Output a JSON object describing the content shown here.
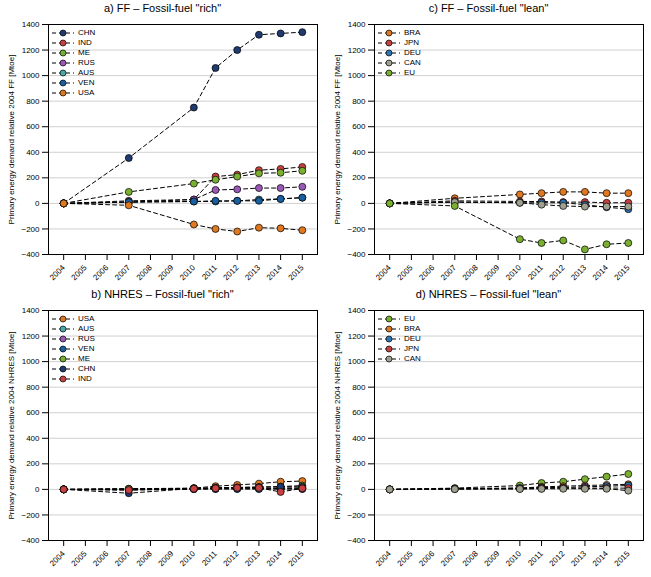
{
  "chart_data": [
    {
      "type": "line",
      "title": "a) FF – Fossil-fuel \"rich\"",
      "ylabel": "Primary energy demand relative 2004 FF [Mtoe]",
      "x": [
        2004,
        2007,
        2010,
        2011,
        2012,
        2013,
        2014,
        2015
      ],
      "xlim": [
        2003.3,
        2015.7
      ],
      "xticks": [
        2004,
        2005,
        2006,
        2007,
        2008,
        2009,
        2010,
        2011,
        2012,
        2013,
        2014,
        2015
      ],
      "ylim": [
        -400,
        1400
      ],
      "yticks": [
        -400,
        -200,
        0,
        200,
        400,
        600,
        800,
        1000,
        1200,
        1400
      ],
      "grid": "y",
      "legend": "upper left",
      "series": [
        {
          "name": "CHN",
          "color": "#1e3a6e",
          "marker": "circle",
          "line_style": "dashed",
          "values": [
            0,
            355,
            750,
            1060,
            1200,
            1320,
            1330,
            1340
          ]
        },
        {
          "name": "IND",
          "color": "#c94040",
          "marker": "circle",
          "line_style": "dashed",
          "values": [
            0,
            20,
            30,
            210,
            225,
            260,
            270,
            285
          ]
        },
        {
          "name": "ME",
          "color": "#7ab030",
          "marker": "circle",
          "line_style": "dashed",
          "values": [
            0,
            90,
            155,
            185,
            210,
            235,
            240,
            255
          ]
        },
        {
          "name": "RUS",
          "color": "#9b59b6",
          "marker": "circle",
          "line_style": "dashed",
          "values": [
            0,
            10,
            30,
            105,
            110,
            120,
            120,
            130
          ]
        },
        {
          "name": "AUS",
          "color": "#48aaaa",
          "marker": "circle",
          "line_style": "dashed",
          "values": [
            0,
            10,
            15,
            15,
            20,
            30,
            35,
            45
          ]
        },
        {
          "name": "VEN",
          "color": "#1a5fa0",
          "marker": "circle",
          "line_style": "dashed",
          "values": [
            0,
            10,
            15,
            20,
            20,
            20,
            35,
            45
          ]
        },
        {
          "name": "USA",
          "color": "#e07820",
          "marker": "circle",
          "line_style": "dashed",
          "values": [
            0,
            -15,
            -165,
            -200,
            -220,
            -190,
            -195,
            -210
          ]
        }
      ]
    },
    {
      "type": "line",
      "title": "b) NHRES – Fossil-fuel \"rich\"",
      "ylabel": "Primary energy demand relative 2004 NHRES [Mtoe]",
      "x": [
        2004,
        2007,
        2010,
        2011,
        2012,
        2013,
        2014,
        2015
      ],
      "xlim": [
        2003.3,
        2015.7
      ],
      "xticks": [
        2004,
        2005,
        2006,
        2007,
        2008,
        2009,
        2010,
        2011,
        2012,
        2013,
        2014,
        2015
      ],
      "ylim": [
        -400,
        1400
      ],
      "yticks": [
        -400,
        -200,
        0,
        200,
        400,
        600,
        800,
        1000,
        1200,
        1400
      ],
      "grid": "y",
      "legend": "upper left",
      "series": [
        {
          "name": "USA",
          "color": "#e07820",
          "marker": "circle",
          "line_style": "dashed",
          "values": [
            0,
            5,
            10,
            25,
            35,
            45,
            60,
            65
          ]
        },
        {
          "name": "AUS",
          "color": "#48aaaa",
          "marker": "circle",
          "line_style": "dashed",
          "values": [
            0,
            3,
            5,
            8,
            10,
            10,
            10,
            12
          ]
        },
        {
          "name": "RUS",
          "color": "#9b59b6",
          "marker": "circle",
          "line_style": "dashed",
          "values": [
            0,
            2,
            3,
            4,
            5,
            5,
            5,
            5
          ]
        },
        {
          "name": "VEN",
          "color": "#1a5fa0",
          "marker": "circle",
          "line_style": "dashed",
          "values": [
            0,
            -5,
            2,
            3,
            3,
            3,
            3,
            3
          ]
        },
        {
          "name": "ME",
          "color": "#7ab030",
          "marker": "circle",
          "line_style": "dashed",
          "values": [
            0,
            3,
            8,
            12,
            15,
            18,
            22,
            30
          ]
        },
        {
          "name": "CHN",
          "color": "#1e3a6e",
          "marker": "circle",
          "line_style": "dashed",
          "values": [
            0,
            -30,
            8,
            12,
            15,
            18,
            20,
            20
          ]
        },
        {
          "name": "IND",
          "color": "#c94040",
          "marker": "circle",
          "line_style": "dashed",
          "values": [
            0,
            -5,
            5,
            8,
            12,
            12,
            -20,
            8
          ]
        }
      ]
    },
    {
      "type": "line",
      "title": "c) FF – Fossil-fuel \"lean\"",
      "ylabel": "Primary energy demand relative 2004 FF [Mtoe]",
      "x": [
        2004,
        2007,
        2010,
        2011,
        2012,
        2013,
        2014,
        2015
      ],
      "xlim": [
        2003.3,
        2015.7
      ],
      "xticks": [
        2004,
        2005,
        2006,
        2007,
        2008,
        2009,
        2010,
        2011,
        2012,
        2013,
        2014,
        2015
      ],
      "ylim": [
        -400,
        1400
      ],
      "yticks": [
        -400,
        -200,
        0,
        200,
        400,
        600,
        800,
        1000,
        1200,
        1400
      ],
      "grid": "y",
      "legend": "upper left",
      "series": [
        {
          "name": "BRA",
          "color": "#e07820",
          "marker": "circle",
          "line_style": "dashed",
          "values": [
            0,
            40,
            70,
            80,
            90,
            90,
            80,
            80
          ]
        },
        {
          "name": "JPN",
          "color": "#c94040",
          "marker": "circle",
          "line_style": "dashed",
          "values": [
            0,
            20,
            15,
            15,
            10,
            10,
            5,
            5
          ]
        },
        {
          "name": "DEU",
          "color": "#2e75b6",
          "marker": "circle",
          "line_style": "dashed",
          "values": [
            0,
            10,
            5,
            5,
            5,
            -10,
            -30,
            -45
          ]
        },
        {
          "name": "CAN",
          "color": "#a0a090",
          "marker": "circle",
          "line_style": "dashed",
          "values": [
            0,
            10,
            5,
            -10,
            -20,
            -25,
            -25,
            -25
          ]
        },
        {
          "name": "EU",
          "color": "#7ab030",
          "marker": "circle",
          "line_style": "dashed",
          "values": [
            0,
            -20,
            -280,
            -310,
            -290,
            -360,
            -320,
            -310
          ]
        }
      ]
    },
    {
      "type": "line",
      "title": "d) NHRES – Fossil-fuel \"lean\"",
      "ylabel": "Primary energy demand relative 2004 NHRES [Mtoe]",
      "x": [
        2004,
        2007,
        2010,
        2011,
        2012,
        2013,
        2014,
        2015
      ],
      "xlim": [
        2003.3,
        2015.7
      ],
      "xticks": [
        2004,
        2005,
        2006,
        2007,
        2008,
        2009,
        2010,
        2011,
        2012,
        2013,
        2014,
        2015
      ],
      "ylim": [
        -400,
        1400
      ],
      "yticks": [
        -400,
        -200,
        0,
        200,
        400,
        600,
        800,
        1000,
        1200,
        1400
      ],
      "grid": "y",
      "legend": "upper left",
      "series": [
        {
          "name": "EU",
          "color": "#7ab030",
          "marker": "circle",
          "line_style": "dashed",
          "values": [
            0,
            10,
            30,
            50,
            60,
            80,
            100,
            120
          ]
        },
        {
          "name": "BRA",
          "color": "#e07820",
          "marker": "circle",
          "line_style": "dashed",
          "values": [
            0,
            5,
            10,
            20,
            25,
            30,
            35,
            40
          ]
        },
        {
          "name": "DEU",
          "color": "#2e75b6",
          "marker": "circle",
          "line_style": "dashed",
          "values": [
            0,
            5,
            10,
            15,
            15,
            20,
            25,
            30
          ]
        },
        {
          "name": "JPN",
          "color": "#c94040",
          "marker": "circle",
          "line_style": "dashed",
          "values": [
            0,
            3,
            5,
            8,
            10,
            10,
            10,
            10
          ]
        },
        {
          "name": "CAN",
          "color": "#a0a090",
          "marker": "circle",
          "line_style": "dashed",
          "values": [
            0,
            2,
            3,
            4,
            5,
            5,
            5,
            -10
          ]
        }
      ]
    }
  ]
}
